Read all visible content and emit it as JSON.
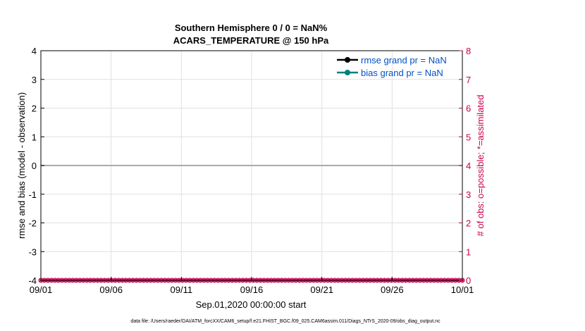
{
  "footer": {
    "data_file": "data file: /Users/raeder/DAI/ATM_forcXX/CAM6_setup/f.e21.FHIST_BGC.f09_025.CAM6assim.011/Diags_NTrS_2020-09/obs_diag_output.nc"
  },
  "chart_data": {
    "type": "line",
    "title": "Southern Hemisphere 0 / 0 = NaN%",
    "subtitle": "ACARS_TEMPERATURE @ 150 hPa",
    "xlabel": "Sep.01,2020 00:00:00 start",
    "ylabel": "rmse and bias (model - observation)",
    "y2label": "# of obs: o=possible; *=assimilated",
    "x_ticks": [
      "09/01",
      "09/06",
      "09/11",
      "09/16",
      "09/21",
      "09/26",
      "10/01"
    ],
    "xlim": [
      "2020-09-01",
      "2020-10-01"
    ],
    "ylim": [
      -4,
      4
    ],
    "y_ticks": [
      "4",
      "3",
      "2",
      "1",
      "0",
      "-1",
      "-2",
      "-3",
      "-4"
    ],
    "y2lim": [
      0,
      8
    ],
    "y2_ticks": [
      "8",
      "7",
      "6",
      "5",
      "4",
      "3",
      "2",
      "1",
      "0"
    ],
    "grid": true,
    "legend_position": "top-right",
    "zero_line": 0,
    "series": [
      {
        "name": "rmse grand pr = NaN",
        "color": "#000000",
        "values": []
      },
      {
        "name": "bias grand pr = NaN",
        "color": "#008080",
        "values": []
      }
    ],
    "obs_counts": {
      "color": "#c8004c",
      "possible": [
        0,
        0,
        0,
        0,
        0,
        0,
        0,
        0,
        0,
        0,
        0,
        0,
        0,
        0,
        0,
        0,
        0,
        0,
        0,
        0,
        0,
        0,
        0,
        0,
        0,
        0,
        0,
        0,
        0,
        0,
        0,
        0,
        0,
        0,
        0,
        0,
        0,
        0,
        0,
        0,
        0,
        0,
        0,
        0,
        0,
        0,
        0,
        0,
        0,
        0,
        0,
        0,
        0,
        0,
        0,
        0,
        0,
        0,
        0,
        0,
        0,
        0,
        0,
        0,
        0,
        0,
        0,
        0,
        0,
        0,
        0,
        0,
        0,
        0,
        0,
        0,
        0,
        0,
        0,
        0,
        0,
        0,
        0,
        0,
        0,
        0,
        0,
        0,
        0,
        0,
        0,
        0,
        0,
        0,
        0,
        0,
        0,
        0,
        0,
        0,
        0,
        0,
        0,
        0,
        0,
        0,
        0,
        0,
        0,
        0,
        0,
        0,
        0,
        0,
        0,
        0,
        0,
        0,
        0,
        0
      ],
      "assimilated": [
        0,
        0,
        0,
        0,
        0,
        0,
        0,
        0,
        0,
        0,
        0,
        0,
        0,
        0,
        0,
        0,
        0,
        0,
        0,
        0,
        0,
        0,
        0,
        0,
        0,
        0,
        0,
        0,
        0,
        0,
        0,
        0,
        0,
        0,
        0,
        0,
        0,
        0,
        0,
        0,
        0,
        0,
        0,
        0,
        0,
        0,
        0,
        0,
        0,
        0,
        0,
        0,
        0,
        0,
        0,
        0,
        0,
        0,
        0,
        0,
        0,
        0,
        0,
        0,
        0,
        0,
        0,
        0,
        0,
        0,
        0,
        0,
        0,
        0,
        0,
        0,
        0,
        0,
        0,
        0,
        0,
        0,
        0,
        0,
        0,
        0,
        0,
        0,
        0,
        0,
        0,
        0,
        0,
        0,
        0,
        0,
        0,
        0,
        0,
        0,
        0,
        0,
        0,
        0,
        0,
        0,
        0,
        0,
        0,
        0,
        0,
        0,
        0,
        0,
        0,
        0,
        0,
        0,
        0,
        0
      ]
    }
  }
}
